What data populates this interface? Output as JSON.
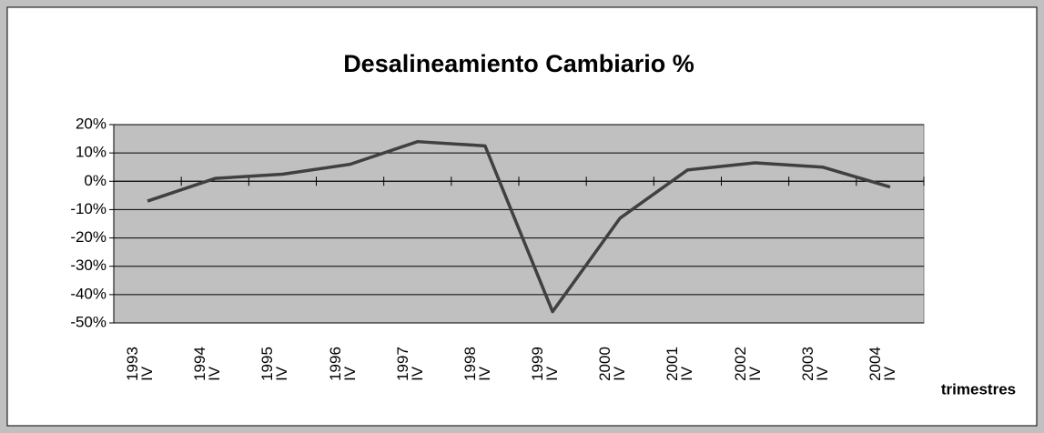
{
  "chart_data": {
    "type": "line",
    "title": "Desalineamiento Cambiario %",
    "x_label": "trimestres",
    "categories": [
      "1993\nIV",
      "1994\nIV",
      "1995\nIV",
      "1996\nIV",
      "1997\nIV",
      "1998\nIV",
      "1999\nIV",
      "2000\nIV",
      "2001\nIV",
      "2002\nIV",
      "2003\nIV",
      "2004\nIV"
    ],
    "values": [
      -7,
      1,
      2.5,
      6,
      14,
      12.5,
      -46,
      -13,
      4,
      6.5,
      5,
      -2
    ],
    "color": "#404040",
    "ylim": [
      -50,
      20
    ],
    "yticks": [
      {
        "value": -50,
        "label": "-50%"
      },
      {
        "value": -40,
        "label": "-40%"
      },
      {
        "value": -30,
        "label": "-30%"
      },
      {
        "value": -20,
        "label": "-20%"
      },
      {
        "value": -10,
        "label": "-10%"
      },
      {
        "value": 0,
        "label": "0%"
      },
      {
        "value": 10,
        "label": "10%"
      },
      {
        "value": 20,
        "label": "20%"
      }
    ],
    "grid": true
  }
}
